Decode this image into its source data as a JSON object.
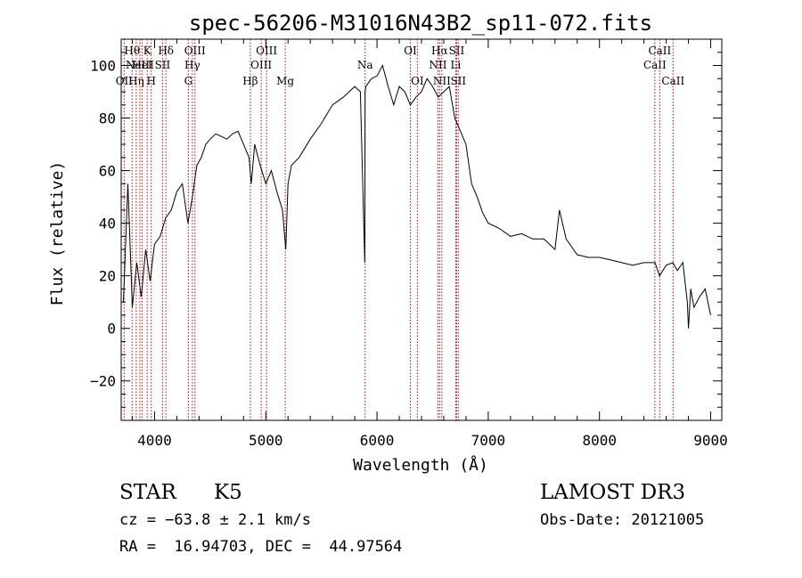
{
  "chart_data": {
    "type": "line",
    "title": "spec-56206-M31016N43B2_sp11-072.fits",
    "xlabel": "Wavelength (Å)",
    "ylabel": "Flux (relative)",
    "xlim": [
      3700,
      9100
    ],
    "ylim": [
      -35,
      110
    ],
    "xticks": [
      4000,
      5000,
      6000,
      7000,
      8000,
      9000
    ],
    "yticks": [
      -20,
      0,
      20,
      40,
      60,
      80,
      100
    ],
    "xtick_labels": [
      "4000",
      "5000",
      "6000",
      "7000",
      "8000",
      "9000"
    ],
    "ytick_labels": [
      "−20",
      "0",
      "20",
      "40",
      "60",
      "80",
      "100"
    ],
    "line_color": "#000000",
    "marker_color": "#cc0000",
    "series": [
      {
        "name": "flux",
        "x": [
          3720,
          3760,
          3800,
          3840,
          3880,
          3920,
          3960,
          4000,
          4050,
          4100,
          4150,
          4200,
          4250,
          4300,
          4340,
          4380,
          4420,
          4460,
          4500,
          4550,
          4600,
          4650,
          4700,
          4750,
          4800,
          4850,
          4870,
          4900,
          4950,
          5000,
          5050,
          5100,
          5150,
          5180,
          5200,
          5230,
          5300,
          5400,
          5500,
          5600,
          5700,
          5800,
          5850,
          5890,
          5893,
          5900,
          5950,
          6000,
          6050,
          6100,
          6150,
          6200,
          6250,
          6300,
          6350,
          6400,
          6450,
          6500,
          6550,
          6600,
          6650,
          6700,
          6750,
          6800,
          6850,
          6900,
          6950,
          7000,
          7100,
          7200,
          7300,
          7400,
          7500,
          7600,
          7640,
          7700,
          7800,
          7900,
          8000,
          8100,
          8200,
          8300,
          8400,
          8500,
          8540,
          8600,
          8660,
          8700,
          8750,
          8790,
          8800,
          8820,
          8850,
          8900,
          8950,
          9000
        ],
        "y": [
          10,
          55,
          8,
          25,
          12,
          30,
          18,
          32,
          35,
          42,
          45,
          52,
          55,
          40,
          50,
          62,
          65,
          70,
          72,
          74,
          73,
          72,
          74,
          75,
          70,
          65,
          55,
          70,
          62,
          55,
          60,
          52,
          45,
          30,
          55,
          62,
          65,
          72,
          78,
          85,
          88,
          92,
          90,
          25,
          90,
          92,
          95,
          96,
          100,
          92,
          85,
          92,
          90,
          85,
          88,
          90,
          95,
          92,
          88,
          90,
          92,
          80,
          75,
          70,
          55,
          50,
          44,
          40,
          38,
          35,
          36,
          34,
          34,
          30,
          45,
          34,
          28,
          27,
          27,
          26,
          25,
          24,
          25,
          25,
          20,
          24,
          25,
          22,
          25,
          10,
          0,
          15,
          8,
          12,
          15,
          5
        ]
      }
    ],
    "line_markers": [
      {
        "x": 3727,
        "label": "OII",
        "row": 3
      },
      {
        "x": 3798,
        "label": "Hθ",
        "row": 1
      },
      {
        "x": 3835,
        "label": "Hη",
        "row": 3
      },
      {
        "x": 3868,
        "label": "NeIII",
        "row": 2
      },
      {
        "x": 3889,
        "label": "HeI",
        "row": 2
      },
      {
        "x": 3934,
        "label": "K",
        "row": 1
      },
      {
        "x": 3970,
        "label": "H",
        "row": 3
      },
      {
        "x": 4072,
        "label": "SII",
        "row": 2
      },
      {
        "x": 4102,
        "label": "Hδ",
        "row": 1
      },
      {
        "x": 4304,
        "label": "G",
        "row": 3
      },
      {
        "x": 4340,
        "label": "Hγ",
        "row": 2
      },
      {
        "x": 4363,
        "label": "OIII",
        "row": 1
      },
      {
        "x": 4861,
        "label": "Hβ",
        "row": 3
      },
      {
        "x": 4959,
        "label": "OIII",
        "row": 2
      },
      {
        "x": 5007,
        "label": "OIII",
        "row": 1
      },
      {
        "x": 5175,
        "label": "Mg",
        "row": 3
      },
      {
        "x": 5893,
        "label": "Na",
        "row": 2
      },
      {
        "x": 6300,
        "label": "OI",
        "row": 1
      },
      {
        "x": 6363,
        "label": "OI",
        "row": 3
      },
      {
        "x": 6548,
        "label": "NII",
        "row": 2
      },
      {
        "x": 6563,
        "label": "Hα",
        "row": 1
      },
      {
        "x": 6583,
        "label": "NII",
        "row": 3
      },
      {
        "x": 6708,
        "label": "Li",
        "row": 2
      },
      {
        "x": 6716,
        "label": "SII",
        "row": 1
      },
      {
        "x": 6731,
        "label": "SII",
        "row": 3
      },
      {
        "x": 8498,
        "label": "CaII",
        "row": 2
      },
      {
        "x": 8542,
        "label": "CaII",
        "row": 1
      },
      {
        "x": 8662,
        "label": "CaII",
        "row": 3
      }
    ]
  },
  "info": {
    "object_class": "STAR",
    "subclass": "K5",
    "survey": "LAMOST DR3",
    "velocity": "cz = −63.8 ± 2.1 km/s",
    "obs_date": "Obs-Date: 20121005",
    "coords": "RA =  16.94703, DEC =  44.97564"
  }
}
